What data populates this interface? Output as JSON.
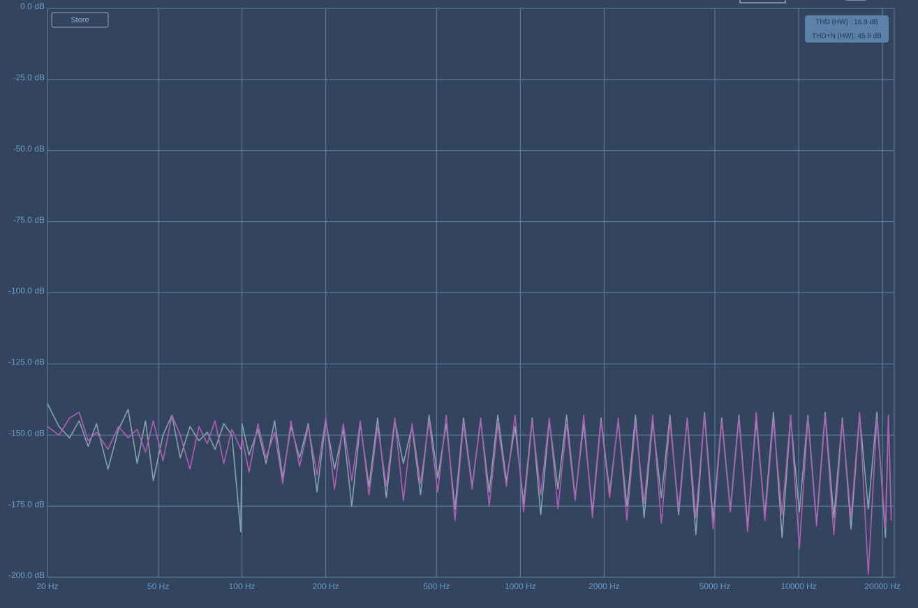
{
  "chart_data": {
    "type": "line",
    "log_x": true,
    "grid": true,
    "button": "Store",
    "annotations": [
      "THD (HW) : 16.9 dB",
      "THD+N (HW): 45.8 dB"
    ],
    "xlim": [
      20,
      22050
    ],
    "ylim": [
      -200,
      0
    ],
    "xticks": [
      {
        "value": 20,
        "label": "20 Hz"
      },
      {
        "value": 50,
        "label": "50 Hz"
      },
      {
        "value": 100,
        "label": "100 Hz"
      },
      {
        "value": 200,
        "label": "200 Hz"
      },
      {
        "value": 500,
        "label": "500 Hz"
      },
      {
        "value": 1000,
        "label": "1000 Hz"
      },
      {
        "value": 2000,
        "label": "2000 Hz"
      },
      {
        "value": 5000,
        "label": "5000 Hz"
      },
      {
        "value": 10000,
        "label": "10000 Hz"
      },
      {
        "value": 20000,
        "label": "20000 Hz"
      }
    ],
    "yticks": [
      {
        "value": 0,
        "label": "0.0 dB"
      },
      {
        "value": -25,
        "label": "-25.0 dB"
      },
      {
        "value": -50,
        "label": "-50.0 dB"
      },
      {
        "value": -75,
        "label": "-75.0 dB"
      },
      {
        "value": -100,
        "label": "-100.0 dB"
      },
      {
        "value": -125,
        "label": "-125.0 dB"
      },
      {
        "value": -150,
        "label": "-150.0 dB"
      },
      {
        "value": -175,
        "label": "-175.0 dB"
      },
      {
        "value": -200,
        "label": "-200.0 dB"
      }
    ],
    "x": [
      20,
      22,
      24,
      26,
      28,
      30,
      33,
      36,
      39,
      42,
      45,
      48,
      52,
      56,
      60,
      65,
      70,
      75,
      80,
      86,
      92,
      99,
      100,
      106,
      114,
      122,
      131,
      140,
      150,
      161,
      173,
      186,
      200,
      215,
      231,
      248,
      266,
      286,
      307,
      330,
      354,
      380,
      408,
      438,
      470,
      505,
      542,
      582,
      625,
      671,
      720,
      773,
      830,
      891,
      957,
      1027,
      1103,
      1184,
      1271,
      1365,
      1466,
      1574,
      1690,
      1815,
      1949,
      2093,
      2248,
      2414,
      2592,
      2784,
      2990,
      3211,
      3448,
      3703,
      3977,
      4271,
      4587,
      4926,
      5290,
      5681,
      6101,
      6552,
      7036,
      7556,
      8115,
      8715,
      9359,
      10051,
      10794,
      11592,
      12449,
      13369,
      14357,
      15418,
      16558,
      17782,
      19096,
      20507,
      21000,
      21500
    ],
    "series": [
      {
        "color": "#85a3b0",
        "values": [
          -139,
          -147,
          -151,
          -145,
          -154,
          -146,
          -162,
          -148,
          -141,
          -160,
          -145,
          -166,
          -150,
          -143,
          -158,
          -147,
          -152,
          -149,
          -155,
          -146,
          -150,
          -184,
          -146,
          -157,
          -148,
          -160,
          -145,
          -165,
          -147,
          -158,
          -146,
          -170,
          -145,
          -162,
          -148,
          -175,
          -146,
          -168,
          -144,
          -172,
          -145,
          -160,
          -147,
          -171,
          -143,
          -165,
          -146,
          -176,
          -144,
          -168,
          -145,
          -170,
          -143,
          -166,
          -147,
          -174,
          -144,
          -178,
          -145,
          -169,
          -143,
          -172,
          -146,
          -177,
          -144,
          -170,
          -145,
          -175,
          -143,
          -179,
          -145,
          -172,
          -143,
          -178,
          -144,
          -185,
          -142,
          -180,
          -144,
          -176,
          -143,
          -182,
          -145,
          -178,
          -142,
          -186,
          -144,
          -177,
          -143,
          -181,
          -142,
          -179,
          -144,
          -183,
          -143,
          -176,
          -142,
          -186,
          -144,
          -178
        ]
      },
      {
        "color": "#b35db3",
        "values": [
          -147,
          -150,
          -144,
          -142,
          -152,
          -149,
          -155,
          -147,
          -151,
          -148,
          -156,
          -145,
          -159,
          -143,
          -150,
          -162,
          -147,
          -153,
          -145,
          -160,
          -148,
          -155,
          -151,
          -163,
          -146,
          -158,
          -149,
          -167,
          -145,
          -161,
          -147,
          -164,
          -144,
          -169,
          -146,
          -166,
          -145,
          -171,
          -147,
          -168,
          -144,
          -173,
          -146,
          -167,
          -145,
          -170,
          -143,
          -180,
          -146,
          -169,
          -144,
          -175,
          -146,
          -168,
          -143,
          -177,
          -145,
          -171,
          -144,
          -176,
          -146,
          -173,
          -143,
          -179,
          -145,
          -172,
          -144,
          -180,
          -146,
          -174,
          -143,
          -181,
          -145,
          -176,
          -144,
          -179,
          -143,
          -183,
          -145,
          -177,
          -144,
          -184,
          -142,
          -180,
          -145,
          -178,
          -143,
          -190,
          -144,
          -182,
          -143,
          -185,
          -145,
          -179,
          -142,
          -199,
          -144,
          -183,
          -143,
          -180
        ]
      }
    ]
  }
}
